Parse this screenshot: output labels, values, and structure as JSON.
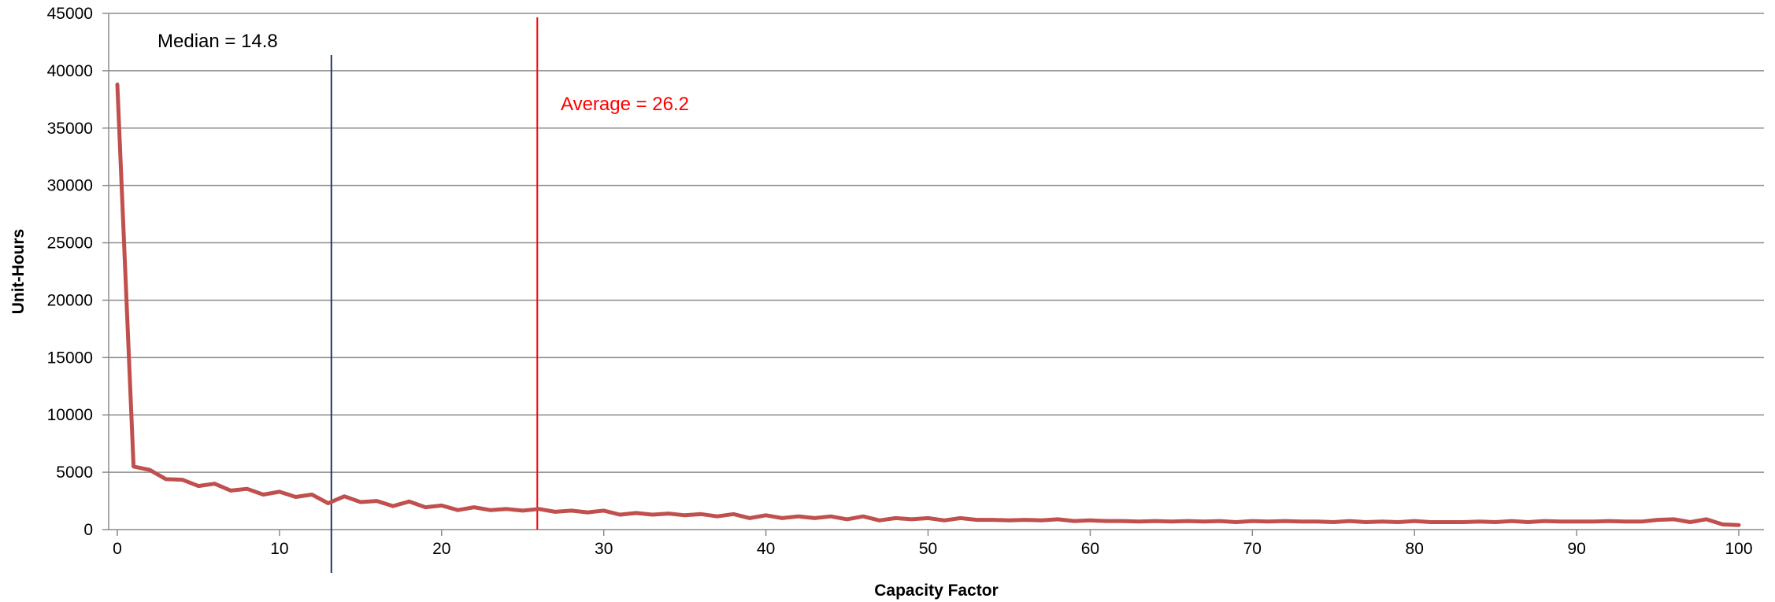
{
  "chart_data": {
    "type": "line",
    "title": "",
    "xlabel": "Capacity Factor",
    "ylabel": "Unit-Hours",
    "xlim": [
      0,
      100
    ],
    "ylim": [
      0,
      45000
    ],
    "x_ticks": [
      0,
      10,
      20,
      30,
      40,
      50,
      60,
      70,
      80,
      90,
      100
    ],
    "y_ticks": [
      0,
      5000,
      10000,
      15000,
      20000,
      25000,
      30000,
      35000,
      40000,
      45000
    ],
    "x_tick_labels": [
      "0",
      "10",
      "20",
      "30",
      "40",
      "50",
      "60",
      "70",
      "80",
      "90",
      "100"
    ],
    "y_tick_labels": [
      "0",
      "5000",
      "10000",
      "15000",
      "20000",
      "25000",
      "30000",
      "35000",
      "40000",
      "45000"
    ],
    "grid": {
      "horizontal": true,
      "vertical": false
    },
    "legend": "none",
    "series": [
      {
        "color": "#C0504D",
        "x": [
          0,
          1,
          2,
          3,
          4,
          5,
          6,
          7,
          8,
          9,
          10,
          11,
          12,
          13,
          14,
          15,
          16,
          17,
          18,
          19,
          20,
          21,
          22,
          23,
          24,
          25,
          26,
          27,
          28,
          29,
          30,
          31,
          32,
          33,
          34,
          35,
          36,
          37,
          38,
          39,
          40,
          41,
          42,
          43,
          44,
          45,
          46,
          47,
          48,
          49,
          50,
          51,
          52,
          53,
          54,
          55,
          56,
          57,
          58,
          59,
          60,
          61,
          62,
          63,
          64,
          65,
          66,
          67,
          68,
          69,
          70,
          71,
          72,
          73,
          74,
          75,
          76,
          77,
          78,
          79,
          80,
          81,
          82,
          83,
          84,
          85,
          86,
          87,
          88,
          89,
          90,
          91,
          92,
          93,
          94,
          95,
          96,
          97,
          98,
          99,
          100
        ],
        "values": [
          38800,
          5500,
          5200,
          4400,
          4350,
          3800,
          4000,
          3400,
          3550,
          3050,
          3300,
          2850,
          3050,
          2300,
          2900,
          2400,
          2500,
          2050,
          2450,
          1950,
          2100,
          1700,
          1950,
          1700,
          1800,
          1650,
          1800,
          1550,
          1650,
          1500,
          1650,
          1300,
          1450,
          1300,
          1400,
          1250,
          1350,
          1150,
          1350,
          1000,
          1250,
          1000,
          1150,
          1000,
          1150,
          900,
          1150,
          800,
          1000,
          900,
          1000,
          800,
          1000,
          850,
          850,
          800,
          850,
          800,
          900,
          750,
          800,
          750,
          750,
          700,
          750,
          700,
          750,
          700,
          750,
          650,
          750,
          700,
          750,
          700,
          700,
          650,
          750,
          650,
          700,
          650,
          750,
          650,
          650,
          650,
          700,
          650,
          750,
          650,
          750,
          700,
          700,
          700,
          750,
          700,
          700,
          850,
          900,
          650,
          900,
          450,
          400
        ]
      }
    ],
    "annotations": [
      {
        "label": "Median = 14.8",
        "x": 13.2,
        "color": "#1F3864"
      },
      {
        "label": "Average = 26.2",
        "x": 25.9,
        "color": "#FF0000"
      }
    ]
  }
}
